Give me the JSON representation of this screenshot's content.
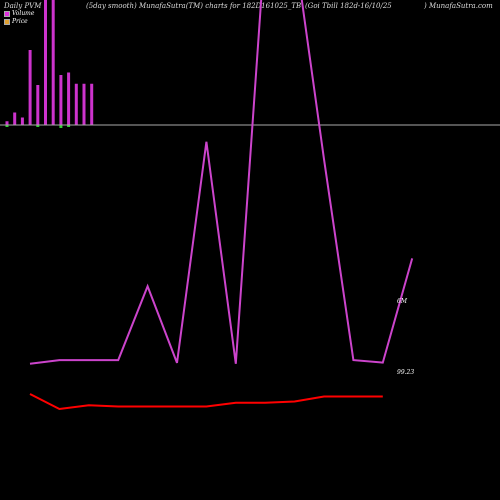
{
  "header": {
    "left": "Daily PVM",
    "middle": "(5day smooth) MunafaSutra(TM) charts for 182D161025_TB",
    "right": "(Goi  Tbill  182d-16/10/25",
    "site": ") MunafaSutra.com"
  },
  "legend": [
    {
      "label": "Volume",
      "color": "#e030e0"
    },
    {
      "label": "Price",
      "color": "#e0a030"
    }
  ],
  "colors": {
    "volume_up": "#cc33cc",
    "volume_down": "#33cc33",
    "baseline": "#aaaaaa",
    "volume_line": "#cc44cc",
    "price_line": "#ff0000"
  },
  "chart_data": {
    "type": "line",
    "series": [
      {
        "name": "Volume",
        "label": "6M",
        "values": [
          100,
          160,
          160,
          160,
          1350,
          115,
          3680,
          100,
          6900,
          6800,
          3400,
          160,
          120,
          1800
        ]
      },
      {
        "name": "Price",
        "label": "99.23",
        "values": [
          99.07,
          98.95,
          98.98,
          98.97,
          98.97,
          98.97,
          98.97,
          99.0,
          99.0,
          99.01,
          99.05,
          99.05,
          99.05
        ]
      }
    ],
    "volume_bars": [
      {
        "value": 3,
        "dir": "up"
      },
      {
        "value": 10,
        "dir": "up"
      },
      {
        "value": 6,
        "dir": "up"
      },
      {
        "value": 60,
        "dir": "up"
      },
      {
        "value": 32,
        "dir": "up"
      },
      {
        "value": 100,
        "dir": "up"
      },
      {
        "value": 100,
        "dir": "up"
      },
      {
        "value": 40,
        "dir": "up"
      },
      {
        "value": 42,
        "dir": "up"
      },
      {
        "value": 33,
        "dir": "up"
      },
      {
        "value": 33,
        "dir": "up"
      },
      {
        "value": 33,
        "dir": "up"
      }
    ],
    "volume_bars_down": [
      {
        "index": 0,
        "value": 2
      },
      {
        "index": 4,
        "value": 2
      },
      {
        "index": 7,
        "value": 3
      },
      {
        "index": 8,
        "value": 2
      }
    ]
  }
}
